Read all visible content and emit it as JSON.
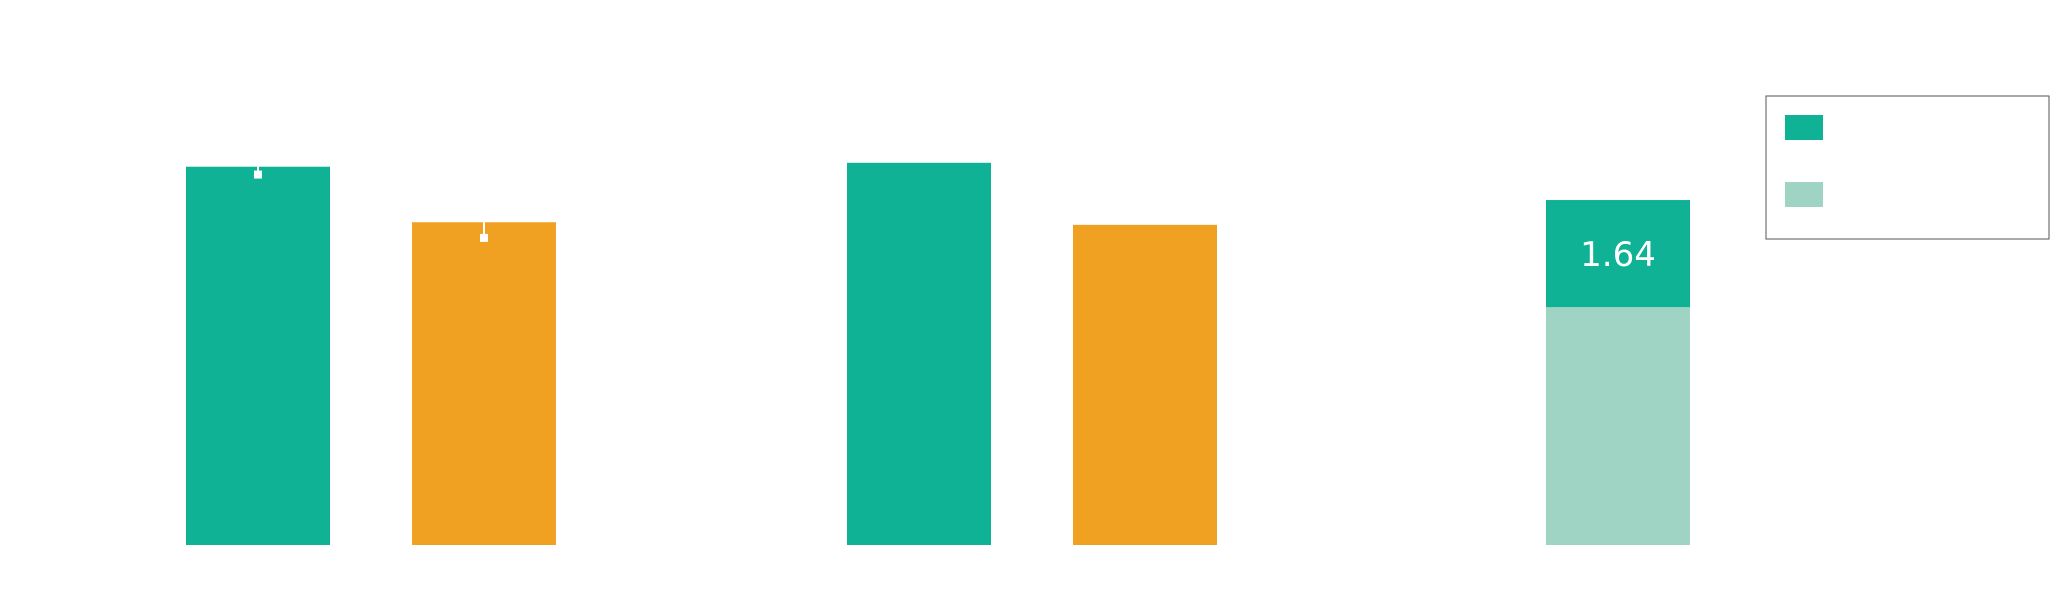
{
  "chart_data": [
    {
      "type": "bar",
      "ylim": [
        0,
        7.5
      ],
      "series": [
        {
          "color": "#0fb294",
          "values": [
            5.79
          ],
          "errors": [
            0.12
          ]
        },
        {
          "color": "#f0a121",
          "values": [
            4.94
          ],
          "errors": [
            0.24
          ]
        }
      ]
    },
    {
      "type": "bar",
      "ylim": [
        0,
        7.5
      ],
      "series": [
        {
          "color": "#0fb294",
          "values": [
            5.85
          ]
        },
        {
          "color": "#f0a121",
          "values": [
            4.9
          ]
        }
      ]
    },
    {
      "type": "stacked_bar",
      "ylim": [
        0,
        7.5
      ],
      "legend": "upper right",
      "series": [
        {
          "color": "#9fd4c5",
          "values": [
            3.64
          ]
        },
        {
          "color": "#0fb294",
          "values": [
            1.64
          ],
          "show_labels": true
        }
      ]
    }
  ]
}
